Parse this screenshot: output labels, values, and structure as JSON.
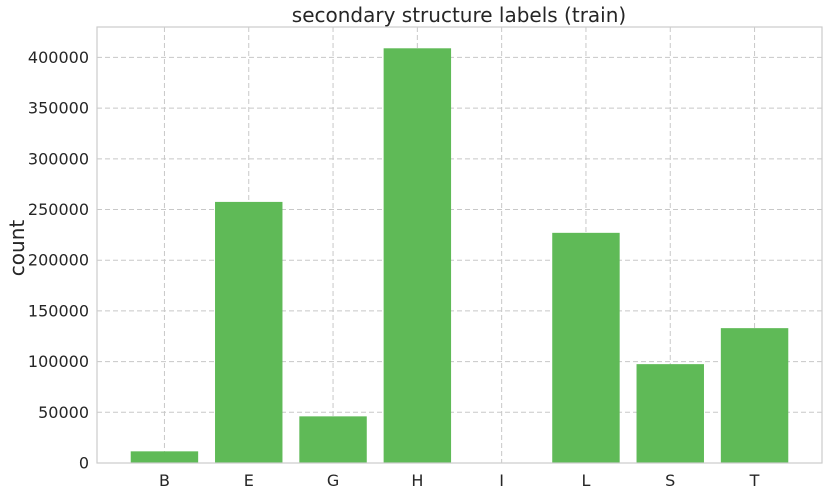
{
  "chart_data": {
    "type": "bar",
    "title": "secondary structure labels (train)",
    "xlabel": "",
    "ylabel": "count",
    "categories": [
      "B",
      "E",
      "G",
      "H",
      "I",
      "L",
      "S",
      "T"
    ],
    "values": [
      11500,
      257500,
      46000,
      409000,
      200,
      227000,
      97500,
      133000
    ],
    "ylim": [
      0,
      430000
    ],
    "yticks": [
      0,
      50000,
      100000,
      150000,
      200000,
      250000,
      300000,
      350000,
      400000
    ],
    "grid": true,
    "bar_color": "#5fba57",
    "grid_color": "#c8c8c8",
    "frame_color": "#cccccc"
  }
}
